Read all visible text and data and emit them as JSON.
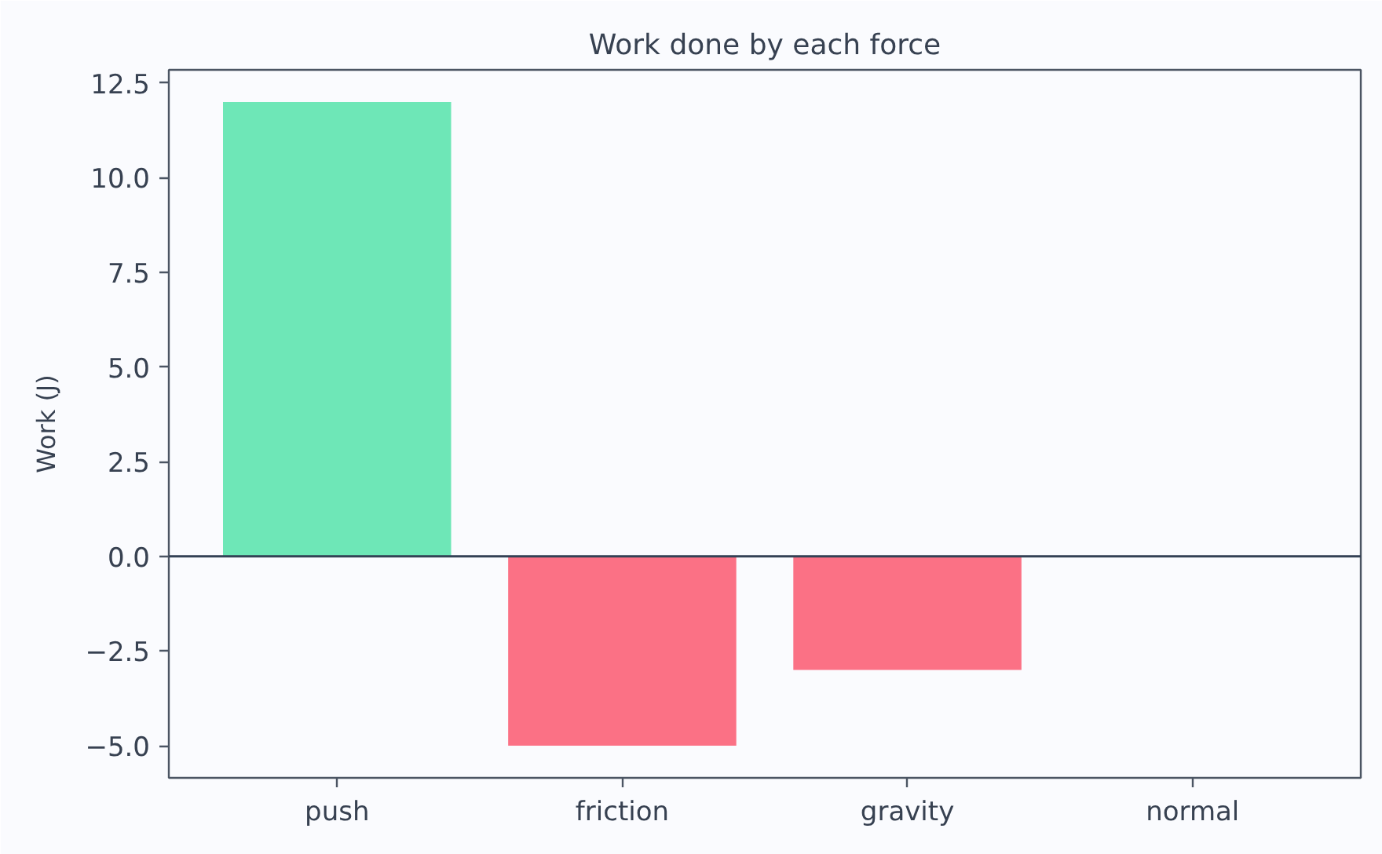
{
  "chart_data": {
    "type": "bar",
    "title": "Work done by each force",
    "ylabel": "Work (J)",
    "categories": [
      "push",
      "friction",
      "gravity",
      "normal"
    ],
    "values": [
      12,
      -5,
      -3,
      0
    ],
    "colors": [
      "#6ee7b7",
      "#fb7185",
      "#fb7185",
      "#6ee7b7"
    ],
    "ylim": [
      -5.85,
      12.85
    ],
    "yticks": [
      {
        "value": -5,
        "label": "−5.0"
      },
      {
        "value": -2.5,
        "label": "−2.5"
      },
      {
        "value": 0,
        "label": "0.0"
      },
      {
        "value": 2.5,
        "label": "2.5"
      },
      {
        "value": 5,
        "label": "5.0"
      },
      {
        "value": 7.5,
        "label": "7.5"
      },
      {
        "value": 10,
        "label": "10.0"
      },
      {
        "value": 12.5,
        "label": "12.5"
      }
    ],
    "ref_lines": [
      {
        "axis": "y",
        "value": 0,
        "color": "#334155"
      }
    ]
  }
}
